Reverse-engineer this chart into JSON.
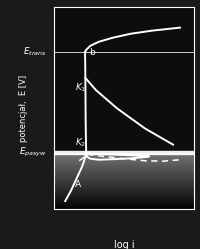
{
  "bg_color": "#1a1a1a",
  "plot_bg_dark": "#0d0d0d",
  "plot_bg_light": "#555555",
  "text_color": "#ffffff",
  "title": "log i",
  "ylabel": "potencjał,  E [V]",
  "xlim": [
    0,
    10
  ],
  "ylim": [
    0,
    10
  ],
  "E_trans_y": 7.8,
  "E_pasyw_y": 2.8,
  "line_color": "#ffffff",
  "lw": 1.4,
  "lw_dash": 1.1
}
